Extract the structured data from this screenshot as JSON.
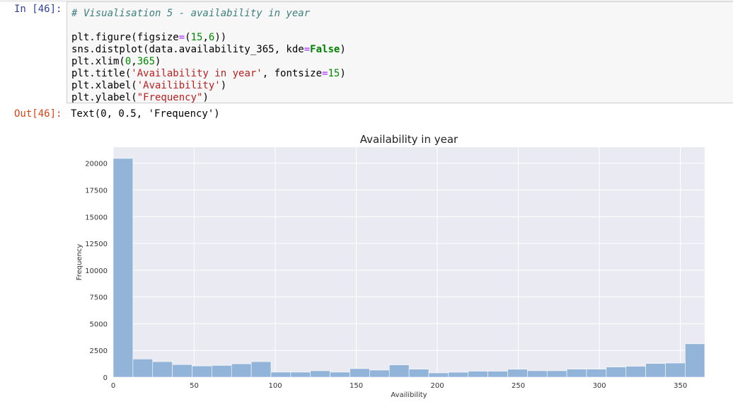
{
  "cell": {
    "in_prompt": "In [46]:",
    "out_prompt": "Out[46]:",
    "output_text": "Text(0, 0.5, 'Frequency')",
    "code_lines": [
      [
        {
          "t": "# Visualisation 5 - availability in year",
          "c": "cm-comment"
        }
      ],
      [],
      [
        {
          "t": "plt.figure(figsize"
        },
        {
          "t": "=",
          "c": "cm-op"
        },
        {
          "t": "("
        },
        {
          "t": "15",
          "c": "cm-number"
        },
        {
          "t": ","
        },
        {
          "t": "6",
          "c": "cm-number"
        },
        {
          "t": "))"
        }
      ],
      [
        {
          "t": "sns.distplot(data.availability_365, kde"
        },
        {
          "t": "=",
          "c": "cm-op"
        },
        {
          "t": "False",
          "c": "cm-kw"
        },
        {
          "t": ")"
        }
      ],
      [
        {
          "t": "plt.xlim("
        },
        {
          "t": "0",
          "c": "cm-number"
        },
        {
          "t": ","
        },
        {
          "t": "365",
          "c": "cm-number"
        },
        {
          "t": ")"
        }
      ],
      [
        {
          "t": "plt.title("
        },
        {
          "t": "'Availability in year'",
          "c": "cm-string"
        },
        {
          "t": ", fontsize"
        },
        {
          "t": "=",
          "c": "cm-op"
        },
        {
          "t": "15",
          "c": "cm-number"
        },
        {
          "t": ")"
        }
      ],
      [
        {
          "t": "plt.xlabel("
        },
        {
          "t": "'Availibility'",
          "c": "cm-string"
        },
        {
          "t": ")"
        }
      ],
      [
        {
          "t": "plt.ylabel("
        },
        {
          "t": "\"Frequency\"",
          "c": "cm-string"
        },
        {
          "t": ")"
        }
      ]
    ]
  },
  "colors": {
    "plot_bg": "#eaeaf2",
    "bar": "#92b4d8",
    "grid": "#ffffff",
    "tick_text": "#333333"
  },
  "chart_data": {
    "type": "bar",
    "title": "Availability in year",
    "xlabel": "Availibility",
    "ylabel": "Frequency",
    "xlim": [
      0,
      365
    ],
    "ylim": [
      0,
      21500
    ],
    "grid": true,
    "xticks": [
      0,
      50,
      100,
      150,
      200,
      250,
      300,
      350
    ],
    "yticks": [
      0,
      2500,
      5000,
      7500,
      10000,
      12500,
      15000,
      17500,
      20000
    ],
    "bin_width": 12.17,
    "values": [
      20450,
      1700,
      1450,
      1180,
      1050,
      1100,
      1250,
      1450,
      470,
      470,
      600,
      470,
      800,
      660,
      1150,
      750,
      400,
      460,
      560,
      560,
      740,
      600,
      600,
      750,
      750,
      950,
      1020,
      1280,
      1320,
      3120
    ]
  }
}
